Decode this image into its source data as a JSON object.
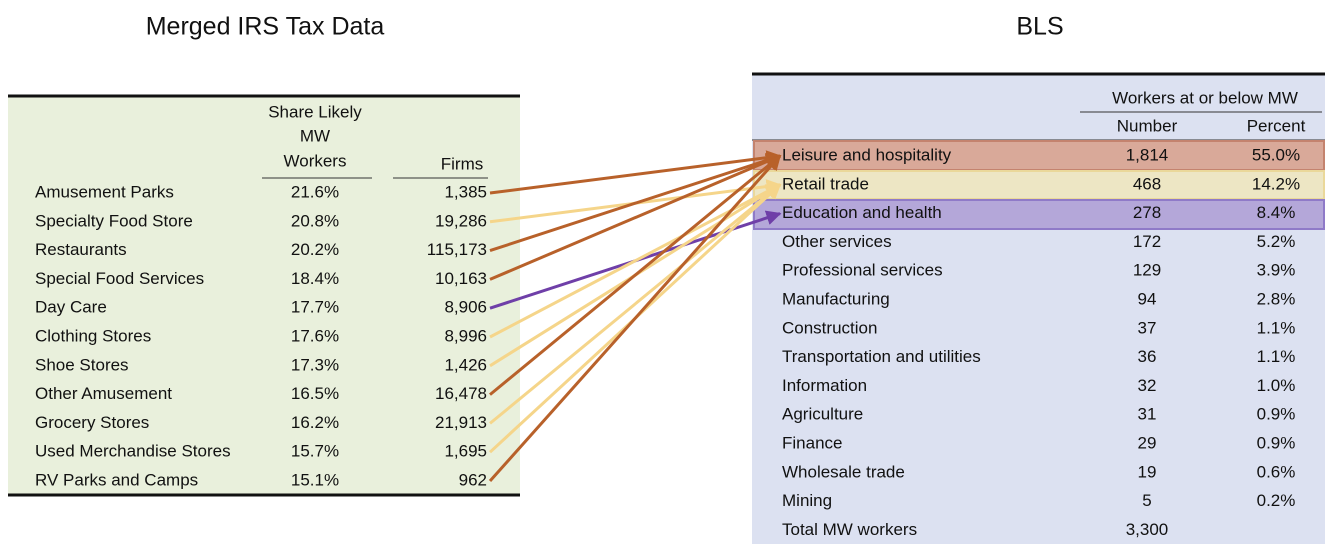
{
  "left": {
    "title": "Merged IRS Tax Data",
    "headers": {
      "share": [
        "Share Likely",
        "MW",
        "Workers"
      ],
      "firms": "Firms"
    },
    "rows": [
      [
        "Amusement Parks",
        "21.6%",
        "1,385"
      ],
      [
        "Specialty Food Store",
        "20.8%",
        "19,286"
      ],
      [
        "Restaurants",
        "20.2%",
        "115,173"
      ],
      [
        "Special Food Services",
        "18.4%",
        "10,163"
      ],
      [
        "Day Care",
        "17.7%",
        "8,906"
      ],
      [
        "Clothing Stores",
        "17.6%",
        "8,996"
      ],
      [
        "Shoe Stores",
        "17.3%",
        "1,426"
      ],
      [
        "Other Amusement",
        "16.5%",
        "16,478"
      ],
      [
        "Grocery Stores",
        "16.2%",
        "21,913"
      ],
      [
        "Used Merchandise Stores",
        "15.7%",
        "1,695"
      ],
      [
        "RV Parks and Camps",
        "15.1%",
        "962"
      ]
    ]
  },
  "right": {
    "title": "BLS",
    "headers": {
      "group": "Workers at or below MW",
      "number": "Number",
      "percent": "Percent"
    },
    "rows": [
      [
        "Leisure and hospitality",
        "1,814",
        "55.0%"
      ],
      [
        "Retail trade",
        "468",
        "14.2%"
      ],
      [
        "Education and health",
        "278",
        "8.4%"
      ],
      [
        "Other services",
        "172",
        "5.2%"
      ],
      [
        "Professional services",
        "129",
        "3.9%"
      ],
      [
        "Manufacturing",
        "94",
        "2.8%"
      ],
      [
        "Construction",
        "37",
        "1.1%"
      ],
      [
        "Transportation and utilities",
        "36",
        "1.1%"
      ],
      [
        "Information",
        "32",
        "1.0%"
      ],
      [
        "Agriculture",
        "31",
        "0.9%"
      ],
      [
        "Finance",
        "29",
        "0.9%"
      ],
      [
        "Wholesale trade",
        "19",
        "0.6%"
      ],
      [
        "Mining",
        "5",
        "0.2%"
      ]
    ],
    "total": {
      "label": "Total MW workers",
      "number": "3,300"
    }
  }
}
